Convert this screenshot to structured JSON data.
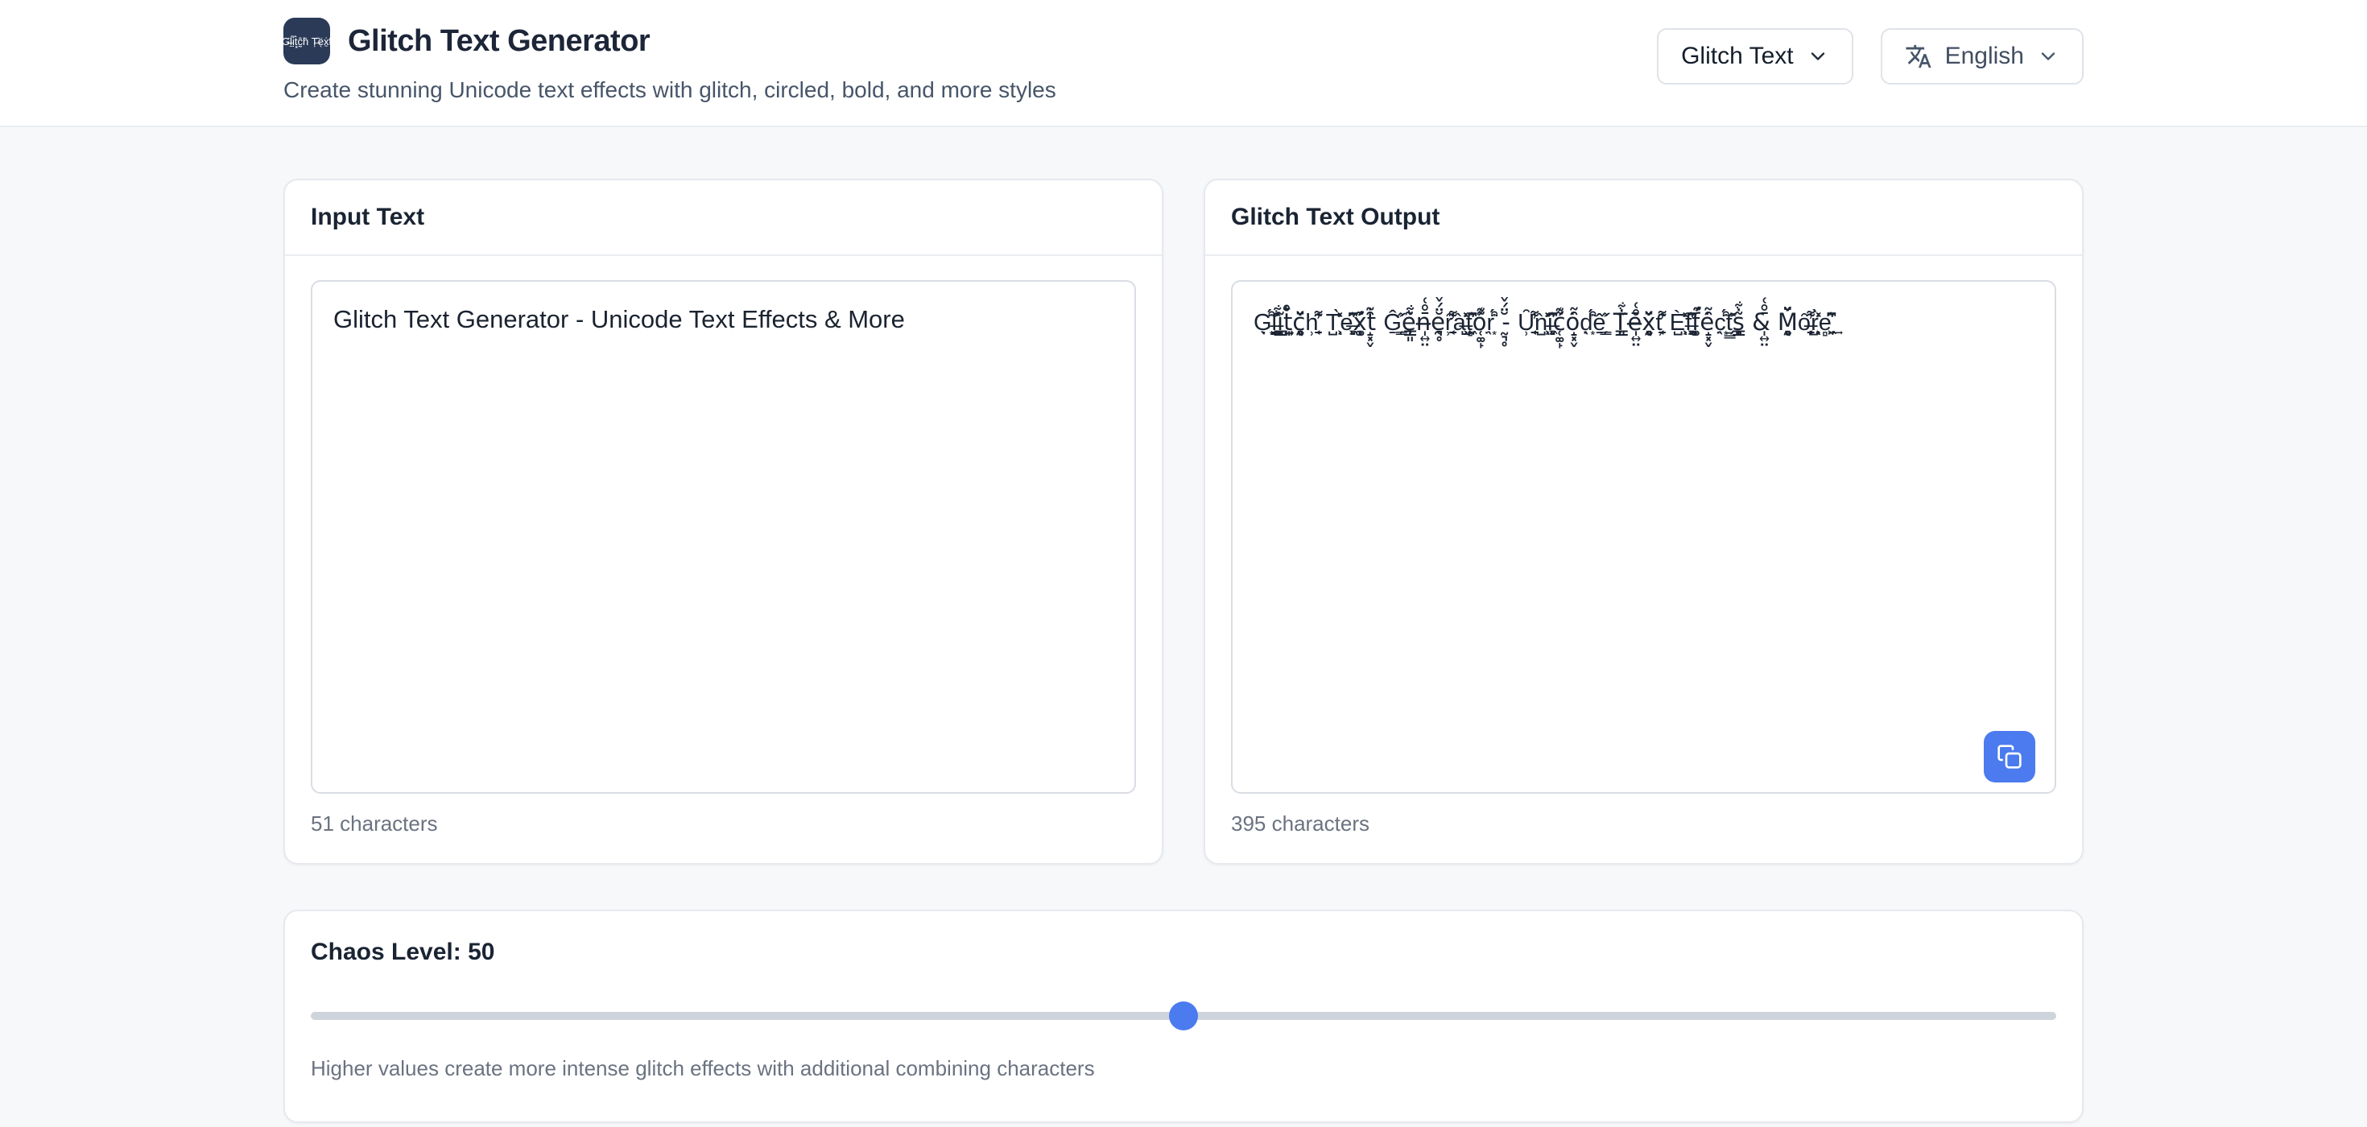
{
  "header": {
    "logo_text": "G̶̈ḻ́ị̋ṫ͓ĉ̰h̑ Ț̶̂ë̖ẋ̱ṭ̃",
    "title": "Glitch Text Generator",
    "subtitle": "Create stunning Unicode text effects with glitch, circled, bold, and more styles",
    "style_select": {
      "label": "Glitch Text",
      "icon": "chevron-down-icon"
    },
    "language_select": {
      "label": "English",
      "icon": "translate-icon"
    }
  },
  "input_card": {
    "title": "Input Text",
    "value": "Glitch Text Generator - Unicode Text Effects & More",
    "char_count": "51 characters"
  },
  "output_card": {
    "title": "Glitch Text Output",
    "value": "G̖̣͙̈́͒ḻ̶͇̗̂̋͐ĩ̦͈̳̇͋t̩͍̤̄̊͑c̰͉̥̆̈́̌h̹͔̠̑̓͌ T̺͕̀̽͗ͅe̶̻͖̘̋͆͛x̜͚̙́͂͊ṫ̝͓̬̑̃ Ĝ̱͇̗̋͐ẽ̦͈̳̇͋n̶̩͍̤̄̊͑ḛ͉̥̆̈́̌ȓ̹͔̠̓͌à̶̺͕̽͗ͅt̻͖̘̋͆͛ó̜͚̙͂͊r̖̣͙̈́͒ -̰͉̥̆̈́̌ Ȗ̹͔̠̓͌ǹ̺͕̽͗ͅi̶̻͖̘̋͆͛ć̜͚̙͂͊ȯ̝͓̬̑̃d̖̣͙̈́͒ê̱͇̗̋͐ Ț͈̳̃̇͋ē̶̩͍̤̊͑x̰͉̥̆̈́̌t̹͔̠̑̓͌ È̺͕̽͗ͅf̶̻͖̘̋͆͛f̜͚̙́͂͊ė̝͓̬̑̃c̖̣͙̈́͒ṯ͇̗̂̋͐ș͈̳̃̇͋ &̩͍̤̄̊͑ M̰͉̥̆̈́̌ȏ̶̹͔̠̓͌r̺͕̀̽͗ͅe̻͖̘͍̋͆͛͢",
    "char_count": "395 characters",
    "copy_icon": "copy-icon"
  },
  "chaos": {
    "label_prefix": "Chaos Level:",
    "value": 50,
    "help": "Higher values create more intense glitch effects with additional combining characters"
  },
  "colors": {
    "accent": "#4b7bef",
    "logo_bg": "#2b3a57",
    "title_text": "#1d2638",
    "muted_text": "#6b7280"
  }
}
